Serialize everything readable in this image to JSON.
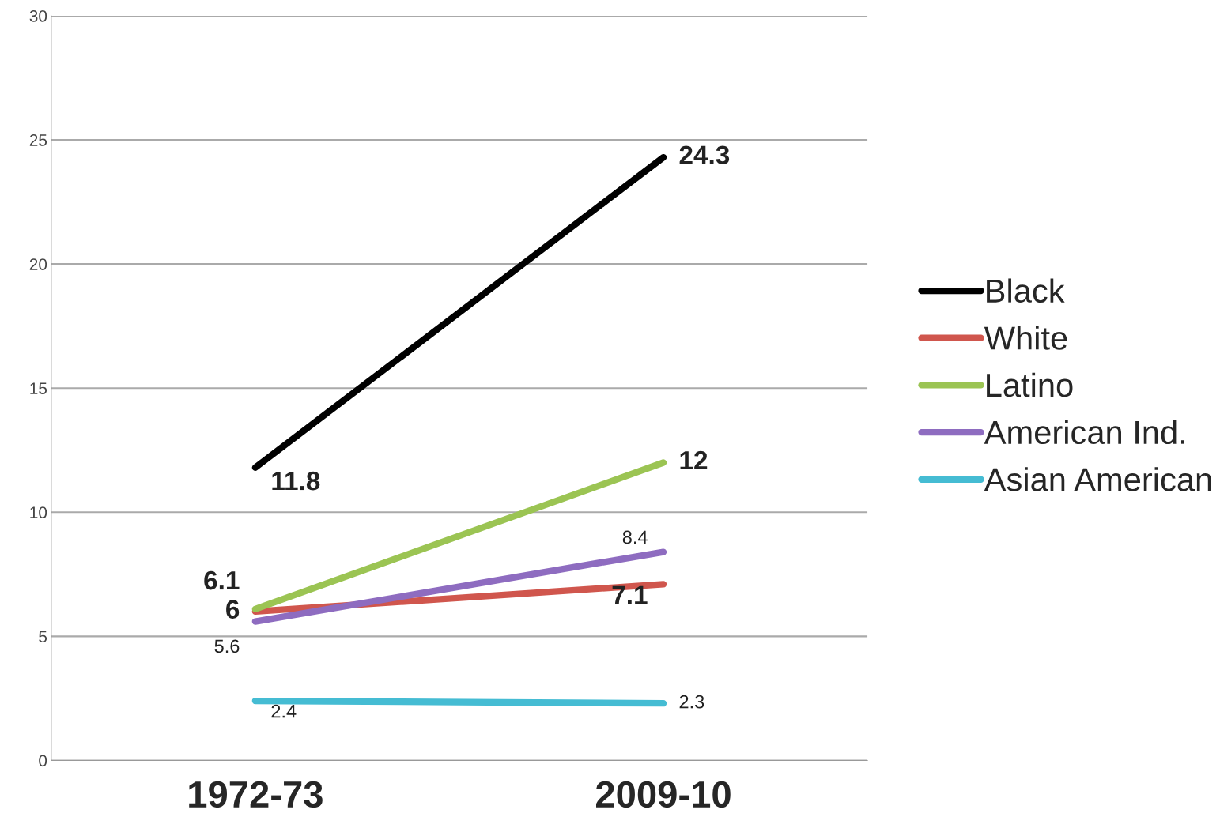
{
  "chart_data": {
    "type": "line",
    "categories": [
      "1972-73",
      "2009-10"
    ],
    "series": [
      {
        "name": "Black",
        "color": "#000000",
        "values": [
          11.8,
          24.3
        ],
        "value_labels": [
          "11.8",
          "24.3"
        ]
      },
      {
        "name": "White",
        "color": "#d0564d",
        "values": [
          6,
          7.1
        ],
        "value_labels": [
          "6",
          "7.1"
        ]
      },
      {
        "name": "Latino",
        "color": "#9bc453",
        "values": [
          6.1,
          12
        ],
        "value_labels": [
          "6.1",
          "12"
        ]
      },
      {
        "name": "American Ind.",
        "color": "#8e6cc0",
        "values": [
          5.6,
          8.4
        ],
        "value_labels": [
          "5.6",
          "8.4"
        ]
      },
      {
        "name": "Asian American",
        "color": "#45bcd3",
        "values": [
          2.4,
          2.3
        ],
        "value_labels": [
          "2.4",
          "2.3"
        ]
      }
    ],
    "ylim": [
      0,
      30
    ],
    "yticks": [
      0,
      5,
      10,
      15,
      20,
      25,
      30
    ],
    "grid": "y",
    "legend": "right",
    "marker": "none",
    "line_style": "solid"
  }
}
